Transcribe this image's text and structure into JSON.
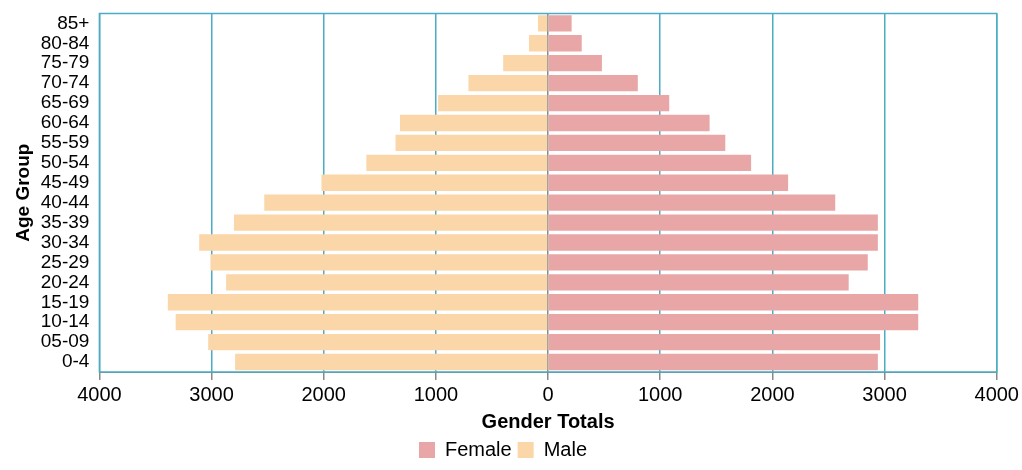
{
  "chart_data": {
    "type": "bar",
    "orientation": "horizontal",
    "stacked": true,
    "xlabel": "Gender Totals",
    "ylabel": "Age Group",
    "categories": [
      "85+",
      "80-84",
      "75-79",
      "70-74",
      "65-69",
      "60-64",
      "55-59",
      "50-54",
      "45-49",
      "40-44",
      "35-39",
      "30-34",
      "25-29",
      "20-24",
      "15-19",
      "10-14",
      "05-09",
      "0-4"
    ],
    "series": [
      {
        "name": "Female",
        "color": "#e8a6a6",
        "values": [
          210,
          300,
          480,
          800,
          1080,
          1440,
          1580,
          1810,
          2140,
          2560,
          2940,
          2940,
          2850,
          2680,
          3300,
          3300,
          2960,
          2940
        ]
      },
      {
        "name": "Male",
        "color": "#fad6a8",
        "values": [
          -90,
          -170,
          -400,
          -710,
          -980,
          -1320,
          -1360,
          -1620,
          -2020,
          -2530,
          -2800,
          -3110,
          -3010,
          -2870,
          -3390,
          -3320,
          -3030,
          -2790
        ]
      }
    ],
    "xlim": [
      -4000,
      4000
    ],
    "xticks": [
      {
        "value": -4000,
        "label": "4000"
      },
      {
        "value": -3000,
        "label": "3000"
      },
      {
        "value": -2000,
        "label": "2000"
      },
      {
        "value": -1000,
        "label": "1000"
      },
      0,
      1000,
      2000,
      3000,
      4000
    ],
    "grid": "x",
    "legend": "bottom"
  }
}
